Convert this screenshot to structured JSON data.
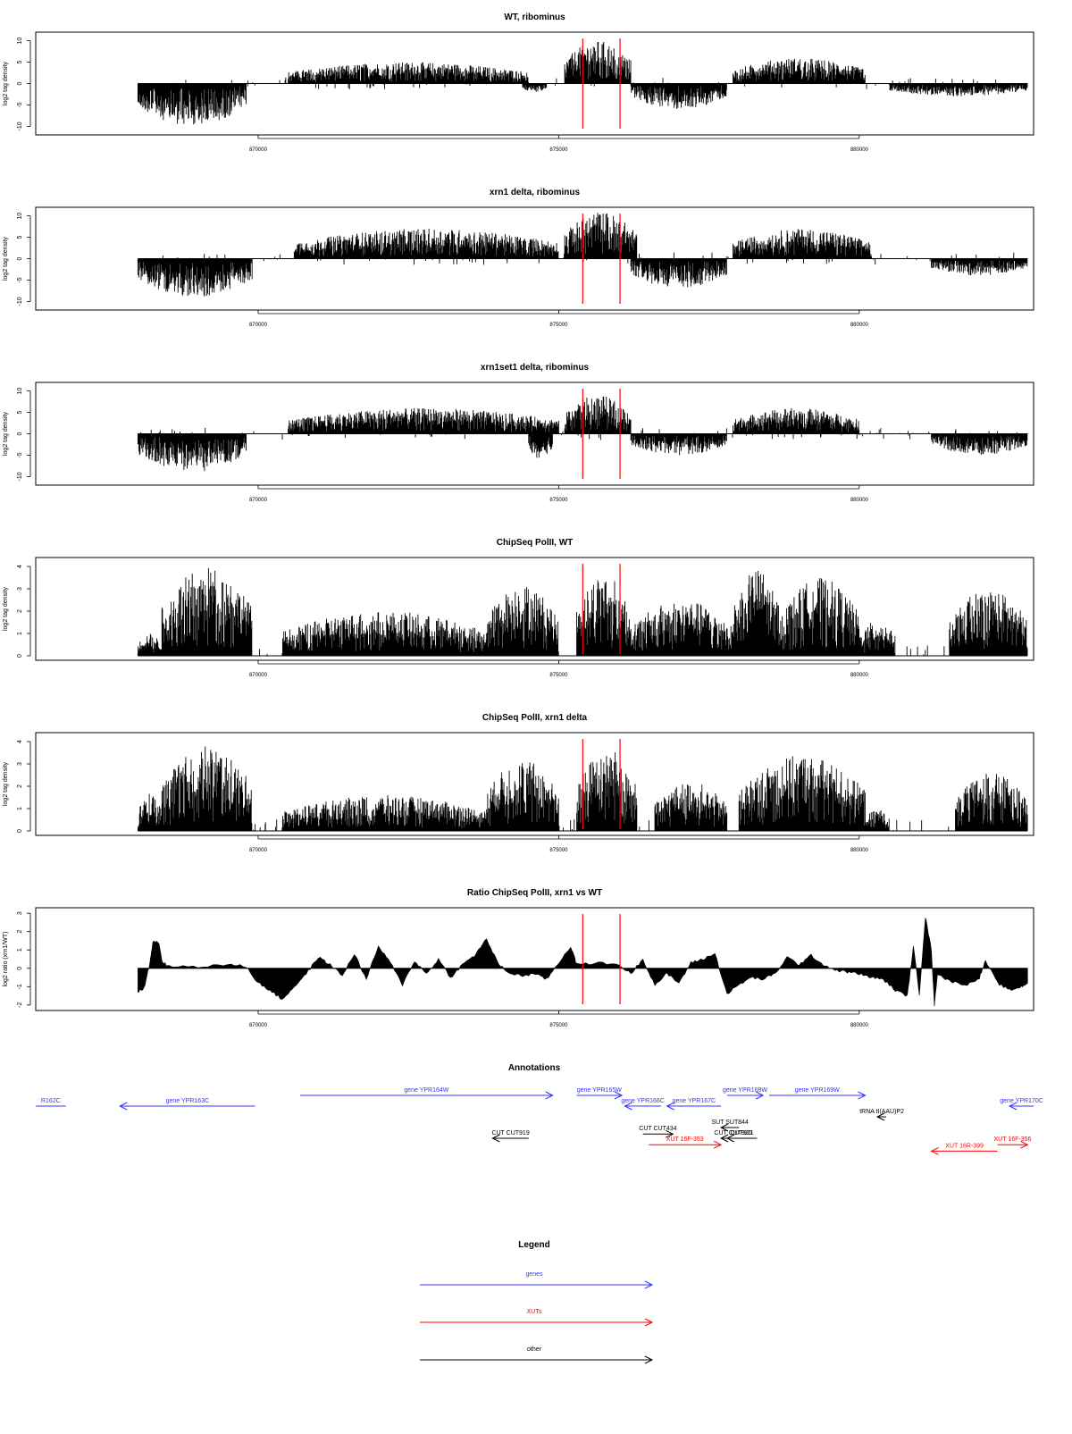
{
  "chart_data": [
    {
      "type": "bar",
      "title": "WT, ribominus",
      "ylabel": "log2 tag density",
      "ylim": [
        -12,
        12
      ],
      "yticks": [
        -10,
        -5,
        0,
        5,
        10
      ],
      "xlim": [
        866300,
        882900
      ],
      "xticks": [
        870000,
        875000,
        880000
      ],
      "red_lines": [
        875400,
        876020
      ],
      "segments": [
        {
          "x0": 868000,
          "x1": 869800,
          "shape": "neg",
          "amp": 10
        },
        {
          "x0": 870500,
          "x1": 874500,
          "shape": "pos",
          "amp": 5
        },
        {
          "x0": 874400,
          "x1": 874800,
          "shape": "neg",
          "amp": 2
        },
        {
          "x0": 875100,
          "x1": 876200,
          "shape": "pos",
          "amp": 10
        },
        {
          "x0": 876200,
          "x1": 877800,
          "shape": "neg",
          "amp": 6
        },
        {
          "x0": 877900,
          "x1": 880100,
          "shape": "pos",
          "amp": 6
        },
        {
          "x0": 880500,
          "x1": 882800,
          "shape": "neg",
          "amp": 3
        }
      ]
    },
    {
      "type": "bar",
      "title": "xrn1 delta, ribominus",
      "ylabel": "log2 tag density",
      "ylim": [
        -12,
        12
      ],
      "yticks": [
        -10,
        -5,
        0,
        5,
        10
      ],
      "xlim": [
        866300,
        882900
      ],
      "xticks": [
        870000,
        875000,
        880000
      ],
      "red_lines": [
        875400,
        876020
      ],
      "segments": [
        {
          "x0": 868000,
          "x1": 869900,
          "shape": "neg",
          "amp": 9
        },
        {
          "x0": 870600,
          "x1": 875000,
          "shape": "pos",
          "amp": 7
        },
        {
          "x0": 875100,
          "x1": 876300,
          "shape": "pos",
          "amp": 11
        },
        {
          "x0": 876200,
          "x1": 877800,
          "shape": "neg",
          "amp": 7
        },
        {
          "x0": 877900,
          "x1": 880200,
          "shape": "pos",
          "amp": 7
        },
        {
          "x0": 881200,
          "x1": 882800,
          "shape": "neg",
          "amp": 4
        }
      ]
    },
    {
      "type": "bar",
      "title": "xrn1set1 delta, ribominus",
      "ylabel": "log2 tag density",
      "ylim": [
        -12,
        12
      ],
      "yticks": [
        -10,
        -5,
        0,
        5,
        10
      ],
      "xlim": [
        866300,
        882900
      ],
      "xticks": [
        870000,
        875000,
        880000
      ],
      "red_lines": [
        875400,
        876020
      ],
      "segments": [
        {
          "x0": 868000,
          "x1": 869800,
          "shape": "neg",
          "amp": 9
        },
        {
          "x0": 870500,
          "x1": 875000,
          "shape": "pos",
          "amp": 6
        },
        {
          "x0": 874500,
          "x1": 874900,
          "shape": "neg",
          "amp": 6
        },
        {
          "x0": 875100,
          "x1": 876200,
          "shape": "pos",
          "amp": 9
        },
        {
          "x0": 876200,
          "x1": 877800,
          "shape": "neg",
          "amp": 5
        },
        {
          "x0": 877900,
          "x1": 880000,
          "shape": "pos",
          "amp": 6
        },
        {
          "x0": 881200,
          "x1": 882800,
          "shape": "neg",
          "amp": 5
        }
      ]
    },
    {
      "type": "bar",
      "title": "ChipSeq PolII, WT",
      "ylabel": "log2 tag density",
      "ylim": [
        -0.2,
        4.4
      ],
      "yticks": [
        0,
        1,
        2,
        3,
        4
      ],
      "xlim": [
        866300,
        882900
      ],
      "xticks": [
        870000,
        875000,
        880000
      ],
      "red_lines": [
        875400,
        876020
      ],
      "segments": [
        {
          "x0": 868000,
          "x1": 868400,
          "shape": "pos",
          "amp": 1
        },
        {
          "x0": 868400,
          "x1": 869900,
          "shape": "pos",
          "amp": 4
        },
        {
          "x0": 870400,
          "x1": 873800,
          "shape": "pos",
          "amp": 2
        },
        {
          "x0": 873800,
          "x1": 875000,
          "shape": "pos",
          "amp": 3.2
        },
        {
          "x0": 875300,
          "x1": 876200,
          "shape": "pos",
          "amp": 3.7
        },
        {
          "x0": 876200,
          "x1": 877900,
          "shape": "pos",
          "amp": 2.5
        },
        {
          "x0": 877900,
          "x1": 878700,
          "shape": "pos",
          "amp": 3.9
        },
        {
          "x0": 878700,
          "x1": 880000,
          "shape": "pos",
          "amp": 3.5
        },
        {
          "x0": 880000,
          "x1": 880600,
          "shape": "pos",
          "amp": 1.6
        },
        {
          "x0": 881500,
          "x1": 882800,
          "shape": "pos",
          "amp": 3
        }
      ]
    },
    {
      "type": "bar",
      "title": "ChipSeq PolII, xrn1 delta",
      "ylabel": "log2 tag density",
      "ylim": [
        -0.2,
        4.4
      ],
      "yticks": [
        0,
        1,
        2,
        3,
        4
      ],
      "xlim": [
        866300,
        882900
      ],
      "xticks": [
        870000,
        875000,
        880000
      ],
      "red_lines": [
        875400,
        876020
      ],
      "segments": [
        {
          "x0": 868000,
          "x1": 868400,
          "shape": "pos",
          "amp": 1.7
        },
        {
          "x0": 868400,
          "x1": 869900,
          "shape": "pos",
          "amp": 3.8
        },
        {
          "x0": 870400,
          "x1": 873800,
          "shape": "pos",
          "amp": 1.6
        },
        {
          "x0": 873800,
          "x1": 875000,
          "shape": "pos",
          "amp": 3.2
        },
        {
          "x0": 875300,
          "x1": 876300,
          "shape": "pos",
          "amp": 3.7
        },
        {
          "x0": 876600,
          "x1": 877800,
          "shape": "pos",
          "amp": 2.2
        },
        {
          "x0": 878000,
          "x1": 880100,
          "shape": "pos",
          "amp": 3.4
        },
        {
          "x0": 880100,
          "x1": 880500,
          "shape": "pos",
          "amp": 1
        },
        {
          "x0": 881600,
          "x1": 882800,
          "shape": "pos",
          "amp": 2.6
        }
      ]
    },
    {
      "type": "area",
      "title": "Ratio ChipSeq PolII, xrn1 vs WT",
      "ylabel": "log2 ratio (xrn1/WT)",
      "ylim": [
        -2.3,
        3.3
      ],
      "yticks": [
        -2,
        -1,
        0,
        1,
        2,
        3
      ],
      "xlim": [
        866300,
        882900
      ],
      "xticks": [
        870000,
        875000,
        880000
      ],
      "red_lines": [
        875400,
        876020
      ],
      "ratio_points": [
        [
          868000,
          -1.3
        ],
        [
          868100,
          -1.1
        ],
        [
          868200,
          0.3
        ],
        [
          868250,
          1.5
        ],
        [
          868350,
          1.4
        ],
        [
          868400,
          0.4
        ],
        [
          868500,
          0.1
        ],
        [
          869000,
          0.1
        ],
        [
          869500,
          0.2
        ],
        [
          869800,
          0.1
        ],
        [
          870000,
          -0.8
        ],
        [
          870200,
          -1.2
        ],
        [
          870400,
          -1.7
        ],
        [
          870600,
          -1.0
        ],
        [
          870800,
          -0.3
        ],
        [
          871000,
          0.6
        ],
        [
          871200,
          0.2
        ],
        [
          871400,
          -0.4
        ],
        [
          871600,
          0.8
        ],
        [
          871800,
          -0.6
        ],
        [
          872000,
          1.2
        ],
        [
          872200,
          0.3
        ],
        [
          872400,
          -0.9
        ],
        [
          872600,
          0.4
        ],
        [
          872800,
          -0.3
        ],
        [
          873000,
          0.5
        ],
        [
          873200,
          -0.5
        ],
        [
          873400,
          0.2
        ],
        [
          873600,
          0.7
        ],
        [
          873800,
          1.6
        ],
        [
          874000,
          0.2
        ],
        [
          874200,
          -0.3
        ],
        [
          874400,
          -0.4
        ],
        [
          874600,
          -0.3
        ],
        [
          874800,
          -0.6
        ],
        [
          875000,
          0.3
        ],
        [
          875200,
          1.2
        ],
        [
          875300,
          0.2
        ],
        [
          875600,
          0.3
        ],
        [
          876000,
          0.2
        ],
        [
          876200,
          -0.3
        ],
        [
          876400,
          0.5
        ],
        [
          876600,
          -0.9
        ],
        [
          876800,
          -0.3
        ],
        [
          877000,
          -0.8
        ],
        [
          877200,
          0.3
        ],
        [
          877400,
          0.5
        ],
        [
          877600,
          0.8
        ],
        [
          877800,
          -1.4
        ],
        [
          878000,
          -0.9
        ],
        [
          878200,
          -0.5
        ],
        [
          878400,
          -0.6
        ],
        [
          878600,
          -0.3
        ],
        [
          878800,
          0.6
        ],
        [
          879000,
          0.2
        ],
        [
          879200,
          0.7
        ],
        [
          879400,
          0.2
        ],
        [
          879600,
          -0.1
        ],
        [
          879800,
          -0.2
        ],
        [
          880000,
          -0.3
        ],
        [
          880200,
          -0.5
        ],
        [
          880400,
          -0.6
        ],
        [
          880600,
          -1.2
        ],
        [
          880800,
          -1.5
        ],
        [
          880900,
          1.2
        ],
        [
          881000,
          -1.4
        ],
        [
          881100,
          2.8
        ],
        [
          881200,
          1.0
        ],
        [
          881250,
          -2.0
        ],
        [
          881300,
          -0.3
        ],
        [
          881500,
          -0.7
        ],
        [
          881800,
          -0.9
        ],
        [
          882000,
          -0.5
        ],
        [
          882100,
          0.4
        ],
        [
          882300,
          -0.8
        ],
        [
          882500,
          -1.2
        ],
        [
          882700,
          -1.0
        ],
        [
          882800,
          -0.8
        ]
      ]
    }
  ],
  "annotations": {
    "title": "Annotations",
    "items": [
      {
        "label": "R162C",
        "color": "#3333ff",
        "row": 0,
        "x0": 866300,
        "x1": 866800,
        "dir": "none"
      },
      {
        "label": "gene YPR163C",
        "color": "#3333ff",
        "row": 0,
        "x0": 867700,
        "x1": 869950,
        "dir": "left"
      },
      {
        "label": "gene YPR164W",
        "color": "#3333ff",
        "row": -1,
        "x0": 870700,
        "x1": 874900,
        "dir": "right"
      },
      {
        "label": "gene YPR165W",
        "color": "#3333ff",
        "row": -1,
        "x0": 875300,
        "x1": 876050,
        "dir": "right"
      },
      {
        "label": "gene YPR166C",
        "color": "#3333ff",
        "row": 0,
        "x0": 876100,
        "x1": 876700,
        "dir": "left"
      },
      {
        "label": "gene YPR167C",
        "color": "#3333ff",
        "row": 0,
        "x0": 876800,
        "x1": 877700,
        "dir": "left"
      },
      {
        "label": "gene YPR168W",
        "color": "#3333ff",
        "row": -1,
        "x0": 877800,
        "x1": 878400,
        "dir": "right"
      },
      {
        "label": "gene YPR169W",
        "color": "#3333ff",
        "row": -1,
        "x0": 878500,
        "x1": 880100,
        "dir": "right"
      },
      {
        "label": "gene YPR170C",
        "color": "#3333ff",
        "row": 0,
        "x0": 882500,
        "x1": 882900,
        "dir": "left"
      },
      {
        "label": "tRNA tI(AAU)P2",
        "color": "#000000",
        "row": 1,
        "x0": 880300,
        "x1": 880450,
        "dir": "left"
      },
      {
        "label": "SUT SUT844",
        "color": "#000000",
        "row": 2,
        "x0": 877700,
        "x1": 878000,
        "dir": "left"
      },
      {
        "label": "CUT CUT434",
        "color": "#000000",
        "row": 2.6,
        "x0": 876400,
        "x1": 876900,
        "dir": "right"
      },
      {
        "label": "CUT CUT919",
        "color": "#000000",
        "row": 3,
        "x0": 873900,
        "x1": 874500,
        "dir": "left"
      },
      {
        "label": "CUT CUT920",
        "color": "#000000",
        "row": 3,
        "x0": 877700,
        "x1": 878100,
        "dir": "left"
      },
      {
        "label": "CUT921",
        "color": "#000000",
        "row": 3,
        "x0": 877800,
        "x1": 878300,
        "dir": "left"
      },
      {
        "label": "XUT 16F-353",
        "color": "#ff0000",
        "row": 3.6,
        "x0": 876500,
        "x1": 877700,
        "dir": "right"
      },
      {
        "label": "XUT 16R-399",
        "color": "#ff0000",
        "row": 4.2,
        "x0": 881200,
        "x1": 882300,
        "dir": "left"
      },
      {
        "label": "XUT 16F-356",
        "color": "#ff0000",
        "row": 3.6,
        "x0": 882300,
        "x1": 882800,
        "dir": "right"
      }
    ]
  },
  "legend": {
    "title": "Legend",
    "items": [
      {
        "label": "genes",
        "color": "#3333ff"
      },
      {
        "label": "XUTs",
        "color": "#ff0000"
      },
      {
        "label": "other",
        "color": "#000000"
      }
    ]
  }
}
